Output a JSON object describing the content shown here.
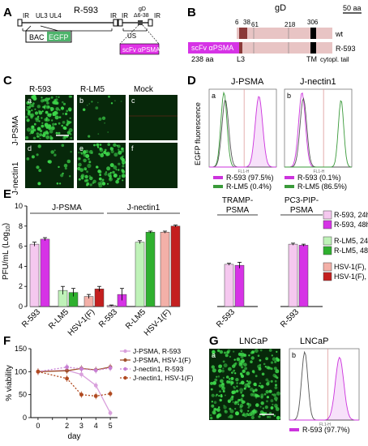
{
  "panels": {
    "A": {
      "letter": "A",
      "construct": "R-593",
      "labels": {
        "ir1": "IR",
        "ul3": "UL3",
        "ul4": "UL4",
        "ul": "UL",
        "ir2": "IR",
        "ir3": "IR",
        "us": "US",
        "ir4": "IR",
        "gd": "gD",
        "delta": "Δ6-38",
        "bac": "BAC",
        "egfp": "EGFP",
        "scfv": "scFv αPSMA"
      },
      "colors": {
        "bac": "#ffffff",
        "egfp": "#4db36b",
        "scfv": "#e033e6"
      }
    },
    "B": {
      "letter": "B",
      "title": "gD",
      "scalebar": "50 aa",
      "pos": [
        "6",
        "38",
        "61",
        "218",
        "306"
      ],
      "wt": "wt",
      "r593": "R-593",
      "aa": "238 aa",
      "scfv": "scFv αPSMA",
      "l3": "L3",
      "tm": "TM",
      "tail": "cytopl. tail",
      "colors": {
        "gd_body": "#e8c4c4",
        "signal": "#8b3a3a",
        "tm": "#000000",
        "scfv": "#d633e6"
      }
    },
    "C": {
      "letter": "C",
      "cols": [
        "R-593",
        "R-LM5",
        "Mock"
      ],
      "rows": [
        "J-PSMA",
        "J-nectin1"
      ],
      "tiles": [
        "a",
        "b",
        "c",
        "d",
        "e",
        "f"
      ],
      "colors": {
        "bg": "#07280a",
        "bright": "#3ed84b"
      }
    },
    "D": {
      "letter": "D",
      "ylabel": "EGFP fluorescence",
      "a": {
        "tag": "a",
        "title": "J-PSMA",
        "legend": [
          "R-593 (97.5%)",
          "R-LM5 (0.4%)"
        ]
      },
      "b": {
        "tag": "b",
        "title": "J-nectin1",
        "legend": [
          "R-593 (0.1%)",
          "R-LM5 (86.5%)"
        ]
      },
      "colors": {
        "r593": "#cc33dd",
        "rlm5": "#3a9a3a"
      }
    },
    "E": {
      "letter": "E",
      "group_titles": [
        "J-PSMA",
        "J-nectin1",
        "TRAMP-PSMA",
        "PC3-PIP-PSMA"
      ],
      "legend": [
        "R-593, 24h",
        "R-593, 48h",
        "R-LM5, 24h",
        "R-LM5, 48h",
        "HSV-1(F), 24h",
        "HSV-1(F), 48h"
      ],
      "colors": [
        "#f5c8ef",
        "#d633e6",
        "#bff2b8",
        "#2fb02f",
        "#f3b0a8",
        "#c41f1f"
      ]
    },
    "F": {
      "letter": "F",
      "legend": [
        "J-PSMA, R-593",
        "J-PSMA, HSV-1(F)",
        "J-nectin1, R-593",
        "J-nectin1, HSV-1(F)"
      ],
      "colors": [
        "#d9a0dc",
        "#a0522d",
        "#c77fd3",
        "#b04a20"
      ]
    },
    "G": {
      "letter": "G",
      "title_a": "LNCaP",
      "title_b": "LNCaP",
      "tag_a": "a",
      "tag_b": "b",
      "legend": "R-593 (97.7%)",
      "colors": {
        "r593": "#cc33dd"
      }
    }
  },
  "chart_data": [
    {
      "type": "bar",
      "panel": "E",
      "ylabel": "PFU/mL (Log10)",
      "ylim": [
        0,
        10
      ],
      "yticks": [
        0,
        2,
        4,
        6,
        8,
        10
      ],
      "groups": [
        {
          "title": "J-PSMA",
          "categories": [
            {
              "label": "R-593",
              "series": [
                "R-593, 24h",
                "R-593, 48h"
              ],
              "values": [
                6.2,
                6.7
              ],
              "errors": [
                0.2,
                0.15
              ]
            },
            {
              "label": "R-LM5",
              "series": [
                "R-LM5, 24h",
                "R-LM5, 48h"
              ],
              "values": [
                1.6,
                1.4
              ],
              "errors": [
                0.4,
                0.4
              ]
            },
            {
              "label": "HSV-1(F)",
              "series": [
                "HSV-1(F), 24h",
                "HSV-1(F), 48h"
              ],
              "values": [
                1.0,
                1.75
              ],
              "errors": [
                0.2,
                0.25
              ]
            }
          ]
        },
        {
          "title": "J-nectin1",
          "categories": [
            {
              "label": "R-593",
              "series": [
                "R-593, 24h",
                "R-593, 48h"
              ],
              "values": [
                0.1,
                1.2
              ],
              "errors": [
                0.05,
                0.6
              ]
            },
            {
              "label": "R-LM5",
              "series": [
                "R-LM5, 24h",
                "R-LM5, 48h"
              ],
              "values": [
                6.4,
                7.4
              ],
              "errors": [
                0.15,
                0.1
              ]
            },
            {
              "label": "HSV-1(F)",
              "series": [
                "HSV-1(F), 24h",
                "HSV-1(F), 48h"
              ],
              "values": [
                7.4,
                8.0
              ],
              "errors": [
                0.1,
                0.1
              ]
            }
          ]
        },
        {
          "title": "TRAMP-PSMA",
          "categories": [
            {
              "label": "R-593",
              "series": [
                "R-593, 24h",
                "R-593, 48h"
              ],
              "values": [
                4.2,
                4.1
              ],
              "errors": [
                0.1,
                0.3
              ]
            }
          ]
        },
        {
          "title": "PC3-PIP-PSMA",
          "categories": [
            {
              "label": "R-593",
              "series": [
                "R-593, 24h",
                "R-593, 48h"
              ],
              "values": [
                6.2,
                6.1
              ],
              "errors": [
                0.1,
                0.1
              ]
            }
          ]
        }
      ]
    },
    {
      "type": "line",
      "panel": "F",
      "xlabel": "day",
      "ylabel": "% viability",
      "x": [
        0,
        2,
        3,
        4,
        5
      ],
      "xlim": [
        -0.5,
        5.5
      ],
      "ylim": [
        0,
        150
      ],
      "yticks": [
        0,
        50,
        100,
        150
      ],
      "series": [
        {
          "name": "J-PSMA, R-593",
          "values": [
            100,
            103,
            94,
            70,
            10
          ],
          "dashed": false
        },
        {
          "name": "J-PSMA, HSV-1(F)",
          "values": [
            100,
            102,
            107,
            104,
            110
          ],
          "dashed": false
        },
        {
          "name": "J-nectin1, R-593",
          "values": [
            100,
            110,
            106,
            103,
            108
          ],
          "dashed": true
        },
        {
          "name": "J-nectin1, HSV-1(F)",
          "values": [
            100,
            85,
            50,
            47,
            52
          ],
          "dashed": true
        }
      ]
    }
  ]
}
